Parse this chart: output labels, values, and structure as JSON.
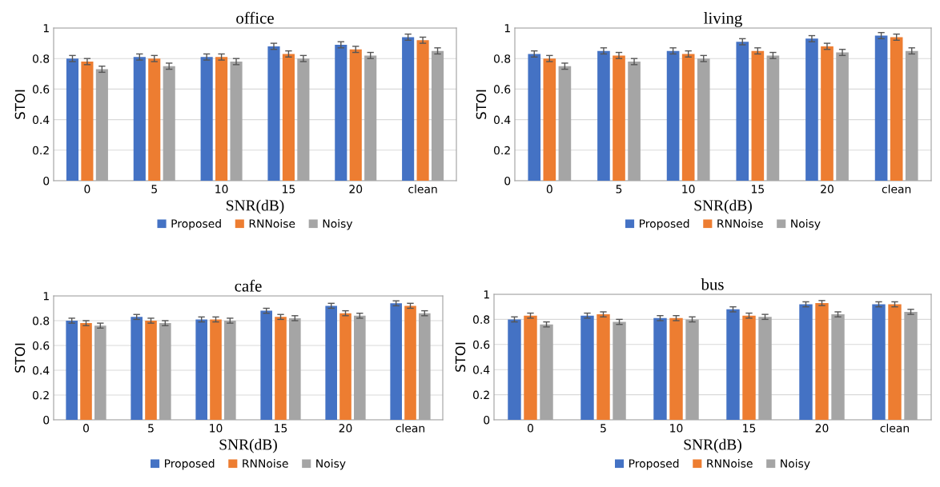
{
  "chart_data": [
    {
      "type": "bar",
      "title": "office",
      "xlabel": "SNR(dB)",
      "ylabel": "STOI",
      "categories": [
        "0",
        "5",
        "10",
        "15",
        "20",
        "clean"
      ],
      "ylim": [
        0,
        1
      ],
      "yticks": [
        0,
        0.2,
        0.4,
        0.6,
        0.8,
        1
      ],
      "grid": "y",
      "legend": "bottom",
      "series": [
        {
          "name": "Proposed",
          "color": "#4472c4",
          "values": [
            0.8,
            0.81,
            0.81,
            0.88,
            0.89,
            0.94
          ],
          "errors": [
            0.02,
            0.02,
            0.02,
            0.02,
            0.02,
            0.02
          ]
        },
        {
          "name": "RNNoise",
          "color": "#ed7d31",
          "values": [
            0.78,
            0.8,
            0.81,
            0.83,
            0.86,
            0.92
          ],
          "errors": [
            0.02,
            0.02,
            0.02,
            0.02,
            0.02,
            0.02
          ]
        },
        {
          "name": "Noisy",
          "color": "#a5a5a5",
          "values": [
            0.73,
            0.75,
            0.78,
            0.8,
            0.82,
            0.85
          ],
          "errors": [
            0.02,
            0.02,
            0.02,
            0.02,
            0.02,
            0.02
          ]
        }
      ]
    },
    {
      "type": "bar",
      "title": "living",
      "xlabel": "SNR(dB)",
      "ylabel": "STOI",
      "categories": [
        "0",
        "5",
        "10",
        "15",
        "20",
        "clean"
      ],
      "ylim": [
        0,
        1
      ],
      "yticks": [
        0,
        0.2,
        0.4,
        0.6,
        0.8,
        1
      ],
      "grid": "y",
      "legend": "bottom",
      "series": [
        {
          "name": "Proposed",
          "color": "#4472c4",
          "values": [
            0.83,
            0.85,
            0.85,
            0.91,
            0.93,
            0.95
          ],
          "errors": [
            0.02,
            0.02,
            0.02,
            0.02,
            0.02,
            0.02
          ]
        },
        {
          "name": "RNNoise",
          "color": "#ed7d31",
          "values": [
            0.8,
            0.82,
            0.83,
            0.85,
            0.88,
            0.94
          ],
          "errors": [
            0.02,
            0.02,
            0.02,
            0.02,
            0.02,
            0.02
          ]
        },
        {
          "name": "Noisy",
          "color": "#a5a5a5",
          "values": [
            0.75,
            0.78,
            0.8,
            0.82,
            0.84,
            0.85
          ],
          "errors": [
            0.02,
            0.02,
            0.02,
            0.02,
            0.02,
            0.02
          ]
        }
      ]
    },
    {
      "type": "bar",
      "title": "cafe",
      "xlabel": "SNR(dB)",
      "ylabel": "STOI",
      "categories": [
        "0",
        "5",
        "10",
        "15",
        "20",
        "clean"
      ],
      "ylim": [
        0,
        1
      ],
      "yticks": [
        0,
        0.2,
        0.4,
        0.6,
        0.8,
        1
      ],
      "grid": "y",
      "legend": "bottom",
      "series": [
        {
          "name": "Proposed",
          "color": "#4472c4",
          "values": [
            0.8,
            0.83,
            0.81,
            0.88,
            0.92,
            0.94
          ],
          "errors": [
            0.02,
            0.02,
            0.02,
            0.02,
            0.02,
            0.02
          ]
        },
        {
          "name": "RNNoise",
          "color": "#ed7d31",
          "values": [
            0.78,
            0.8,
            0.81,
            0.83,
            0.86,
            0.92
          ],
          "errors": [
            0.02,
            0.02,
            0.02,
            0.02,
            0.02,
            0.02
          ]
        },
        {
          "name": "Noisy",
          "color": "#a5a5a5",
          "values": [
            0.76,
            0.78,
            0.8,
            0.82,
            0.84,
            0.86
          ],
          "errors": [
            0.02,
            0.02,
            0.02,
            0.02,
            0.02,
            0.02
          ]
        }
      ]
    },
    {
      "type": "bar",
      "title": "bus",
      "xlabel": "SNR(dB)",
      "ylabel": "STOI",
      "categories": [
        "0",
        "5",
        "10",
        "15",
        "20",
        "clean"
      ],
      "ylim": [
        0,
        1
      ],
      "yticks": [
        0,
        0.2,
        0.4,
        0.6,
        0.8,
        1
      ],
      "grid": "y",
      "legend": "bottom",
      "series": [
        {
          "name": "Proposed",
          "color": "#4472c4",
          "values": [
            0.8,
            0.83,
            0.81,
            0.88,
            0.92,
            0.92
          ],
          "errors": [
            0.02,
            0.02,
            0.02,
            0.02,
            0.02,
            0.02
          ]
        },
        {
          "name": "RNNoise",
          "color": "#ed7d31",
          "values": [
            0.83,
            0.84,
            0.81,
            0.83,
            0.93,
            0.92
          ],
          "errors": [
            0.02,
            0.02,
            0.02,
            0.02,
            0.02,
            0.02
          ]
        },
        {
          "name": "Noisy",
          "color": "#a5a5a5",
          "values": [
            0.76,
            0.78,
            0.8,
            0.82,
            0.84,
            0.86
          ],
          "errors": [
            0.02,
            0.02,
            0.02,
            0.02,
            0.02,
            0.02
          ]
        }
      ]
    }
  ]
}
